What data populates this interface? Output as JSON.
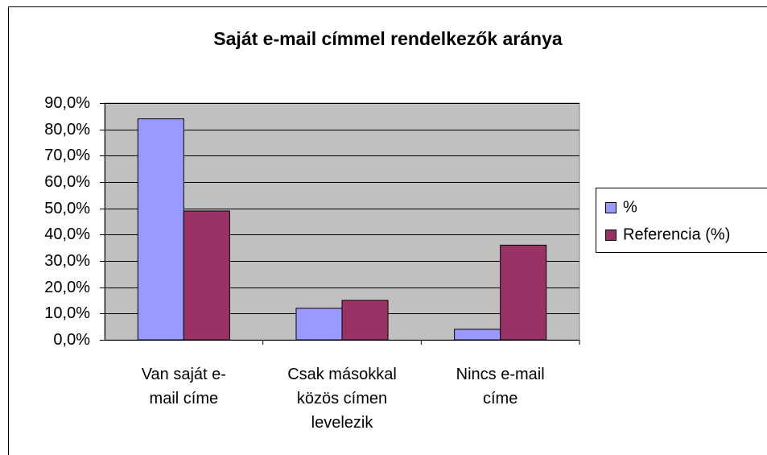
{
  "chart_data": {
    "type": "bar",
    "title": "Saját e-mail címmel rendelkezők aránya",
    "categories": [
      "Van saját e-mail címe",
      "Csak másokkal közös címen levelezik",
      "Nincs e-mail címe"
    ],
    "series": [
      {
        "name": "%",
        "color": "#9999ff",
        "values": [
          84,
          12,
          4
        ]
      },
      {
        "name": "Referencia (%)",
        "color": "#993366",
        "values": [
          49,
          15,
          36
        ]
      }
    ],
    "ylim": [
      0,
      90
    ],
    "yticks": [
      {
        "value": 0,
        "label": "0,0%"
      },
      {
        "value": 10,
        "label": "10,0%"
      },
      {
        "value": 20,
        "label": "20,0%"
      },
      {
        "value": 30,
        "label": "30,0%"
      },
      {
        "value": 40,
        "label": "40,0%"
      },
      {
        "value": 50,
        "label": "50,0%"
      },
      {
        "value": 60,
        "label": "60,0%"
      },
      {
        "value": 70,
        "label": "70,0%"
      },
      {
        "value": 80,
        "label": "80,0%"
      },
      {
        "value": 90,
        "label": "90,0%"
      }
    ],
    "grid": true,
    "legend": "right"
  }
}
